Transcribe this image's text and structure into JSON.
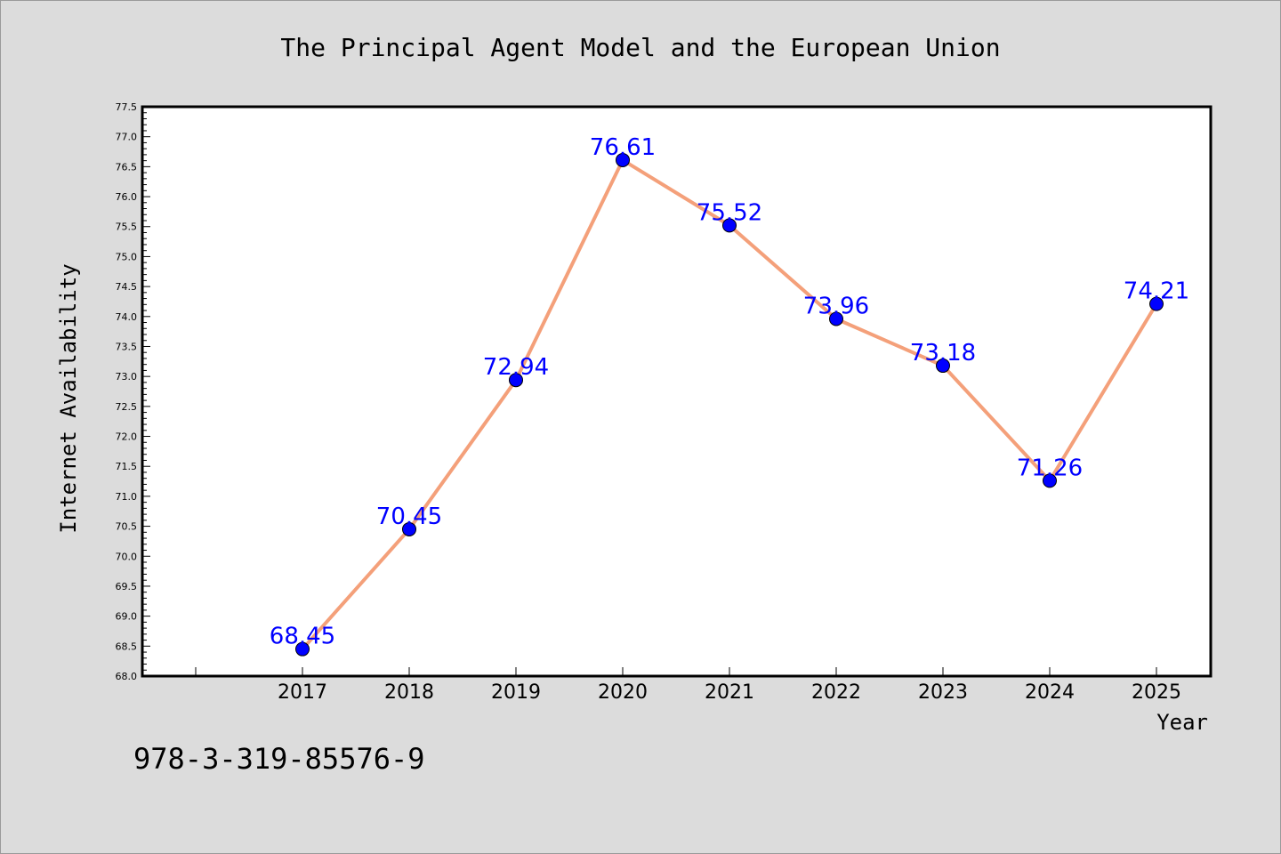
{
  "chart_data": {
    "type": "line",
    "title": "The Principal Agent Model and the European Union",
    "xlabel": "Year",
    "ylabel": "Internet Availability",
    "categories": [
      "2017",
      "2018",
      "2019",
      "2020",
      "2021",
      "2022",
      "2023",
      "2024",
      "2025"
    ],
    "values": [
      68.45,
      70.45,
      72.94,
      76.61,
      75.52,
      73.96,
      73.18,
      71.26,
      74.21
    ],
    "data_labels": [
      "68.45",
      "70.45",
      "72.94",
      "76.61",
      "75.52",
      "73.96",
      "73.18",
      "71.26",
      "74.21"
    ],
    "ylim": [
      68.0,
      77.5
    ],
    "y_ticks": [
      "68.0",
      "68.5",
      "69.0",
      "69.5",
      "70.0",
      "70.5",
      "71.0",
      "71.5",
      "72.0",
      "72.5",
      "73.0",
      "73.5",
      "74.0",
      "74.5",
      "75.0",
      "75.5",
      "76.0",
      "76.5",
      "77.0",
      "77.5"
    ],
    "y_minor_step": 0.1,
    "grid": false,
    "line_color": "#f4a07a",
    "marker_color": "#0000ff",
    "label_color": "#0000ff"
  },
  "footnote": "978-3-319-85576-9"
}
